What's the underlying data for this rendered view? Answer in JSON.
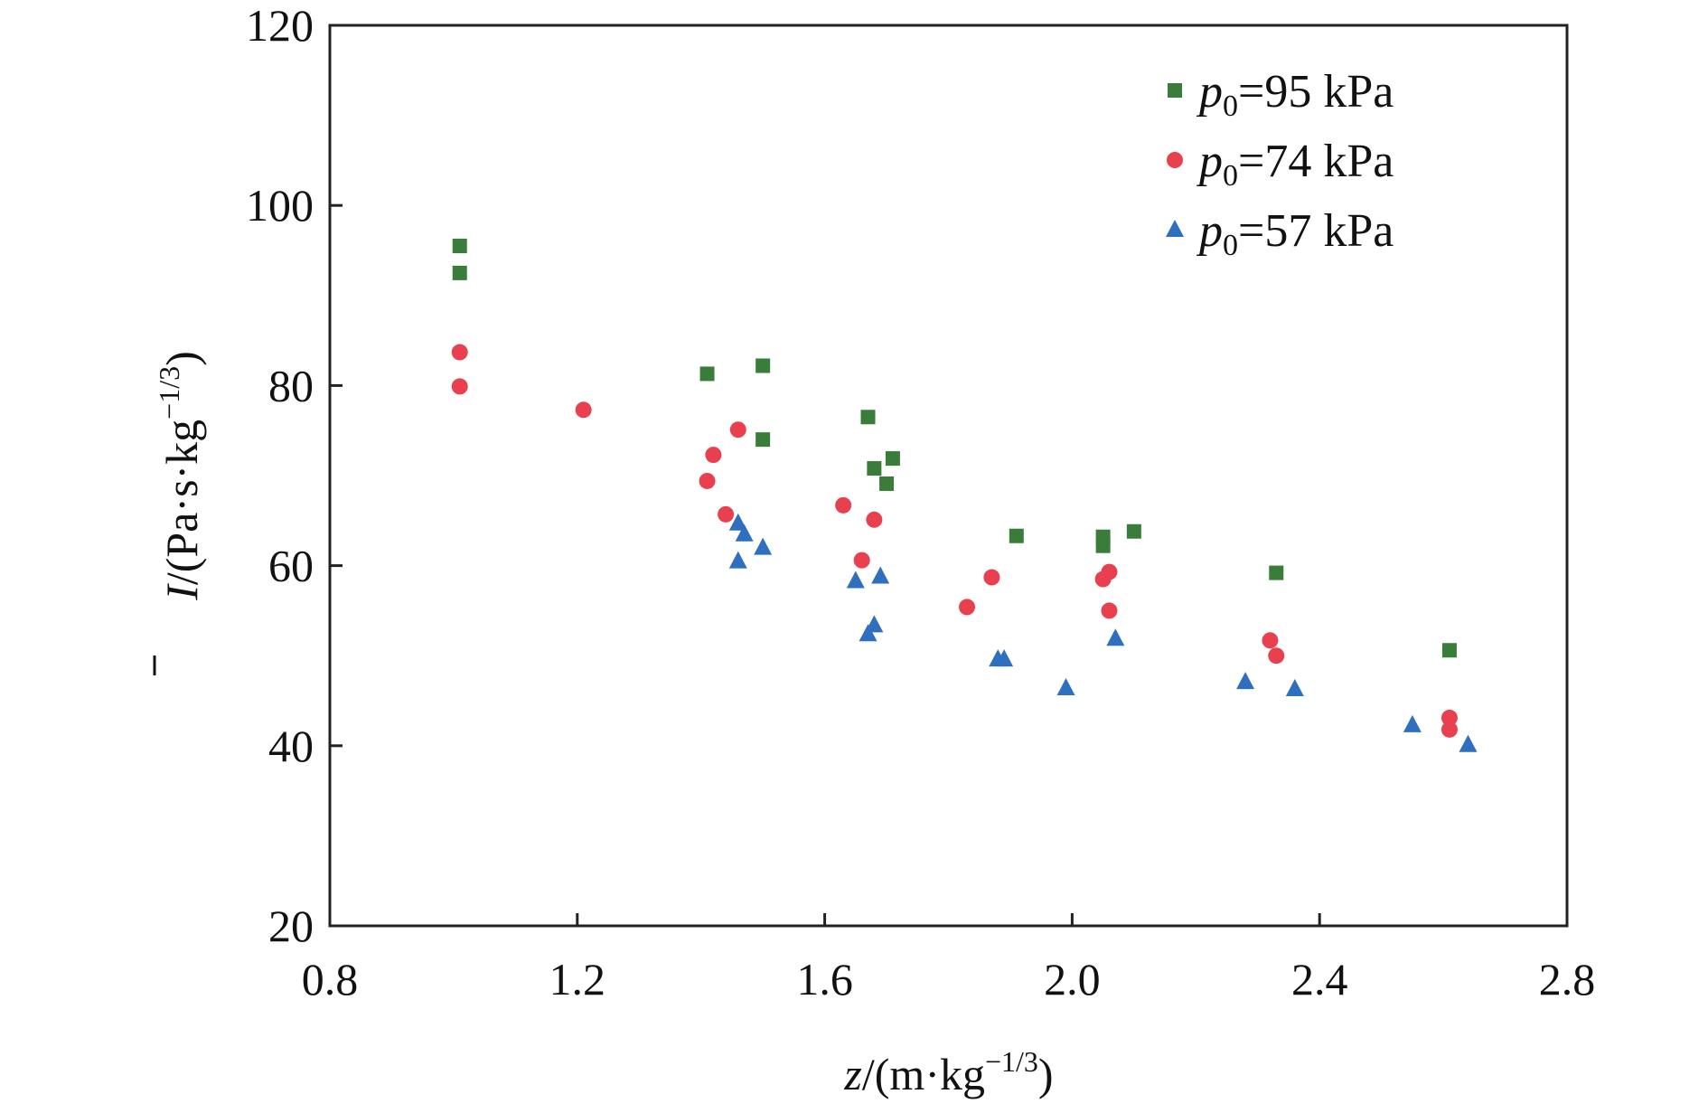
{
  "chart_data": {
    "type": "scatter",
    "xlim": [
      0.8,
      2.8
    ],
    "ylim": [
      20,
      120
    ],
    "xticks": [
      "0.8",
      "1.2",
      "1.6",
      "2.0",
      "2.4",
      "2.8"
    ],
    "yticks": [
      "20",
      "40",
      "60",
      "80",
      "100",
      "120"
    ],
    "xlabel": {
      "var": "z",
      "unit": "/(m·kg",
      "exp": "−1/3",
      "close": ")"
    },
    "ylabel": {
      "var": "I",
      "unit": "/(Pa·s·kg",
      "exp": "−1/3",
      "close": ")"
    },
    "legend_position": "top-right",
    "grid": false,
    "series": [
      {
        "name": "p0=95 kPa",
        "label_var": "p",
        "label_sub": "0",
        "label_rest": "=95 kPa",
        "marker": "square",
        "color": "#3a7d3a",
        "points": [
          [
            1.01,
            95.5
          ],
          [
            1.01,
            92.5
          ],
          [
            1.41,
            81.3
          ],
          [
            1.5,
            82.2
          ],
          [
            1.5,
            74.0
          ],
          [
            1.67,
            76.5
          ],
          [
            1.68,
            70.8
          ],
          [
            1.7,
            69.1
          ],
          [
            1.71,
            71.9
          ],
          [
            1.91,
            63.3
          ],
          [
            2.05,
            63.2
          ],
          [
            2.05,
            62.2
          ],
          [
            2.1,
            63.8
          ],
          [
            2.33,
            59.2
          ],
          [
            2.61,
            50.6
          ]
        ]
      },
      {
        "name": "p0=74 kPa",
        "label_var": "p",
        "label_sub": "0",
        "label_rest": "=74 kPa",
        "marker": "circle",
        "color": "#e8404f",
        "points": [
          [
            1.01,
            83.7
          ],
          [
            1.01,
            79.9
          ],
          [
            1.21,
            77.3
          ],
          [
            1.42,
            72.3
          ],
          [
            1.41,
            69.4
          ],
          [
            1.46,
            75.1
          ],
          [
            1.44,
            65.7
          ],
          [
            1.63,
            66.7
          ],
          [
            1.68,
            65.1
          ],
          [
            1.66,
            60.6
          ],
          [
            1.83,
            55.4
          ],
          [
            1.87,
            58.7
          ],
          [
            2.05,
            58.5
          ],
          [
            2.06,
            59.3
          ],
          [
            2.06,
            55.0
          ],
          [
            2.32,
            51.7
          ],
          [
            2.33,
            50.0
          ],
          [
            2.61,
            43.1
          ],
          [
            2.61,
            41.8
          ]
        ]
      },
      {
        "name": "p0=57 kPa",
        "label_var": "p",
        "label_sub": "0",
        "label_rest": "=57 kPa",
        "marker": "triangle",
        "color": "#2f6fbf",
        "points": [
          [
            1.46,
            64.7
          ],
          [
            1.47,
            63.5
          ],
          [
            1.5,
            62.0
          ],
          [
            1.46,
            60.5
          ],
          [
            1.65,
            58.3
          ],
          [
            1.69,
            58.8
          ],
          [
            1.68,
            53.4
          ],
          [
            1.67,
            52.4
          ],
          [
            1.88,
            49.6
          ],
          [
            1.89,
            49.6
          ],
          [
            1.99,
            46.4
          ],
          [
            2.07,
            51.9
          ],
          [
            2.28,
            47.1
          ],
          [
            2.36,
            46.3
          ],
          [
            2.55,
            42.3
          ],
          [
            2.64,
            40.1
          ]
        ]
      }
    ]
  }
}
